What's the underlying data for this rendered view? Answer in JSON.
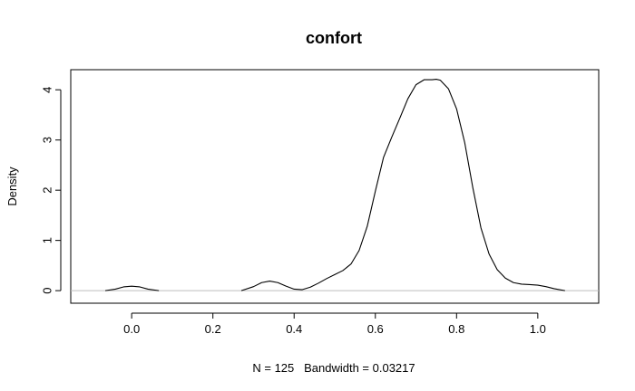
{
  "chart_data": {
    "type": "line",
    "title": "confort",
    "xlabel": "N = 125   Bandwidth = 0.03217",
    "ylabel": "Density",
    "xlim": [
      -0.15,
      1.15
    ],
    "ylim": [
      -0.25,
      4.4
    ],
    "x_ticks": [
      0.0,
      0.2,
      0.4,
      0.6,
      0.8,
      1.0
    ],
    "x_tick_labels": [
      "0.0",
      "0.2",
      "0.4",
      "0.6",
      "0.8",
      "1.0"
    ],
    "y_ticks": [
      0,
      1,
      2,
      3,
      4
    ],
    "y_tick_labels": [
      "0",
      "1",
      "2",
      "3",
      "4"
    ],
    "baseline": 0,
    "grid": false,
    "legend": "none",
    "colors": {
      "line": "#000000",
      "baseline": "#bebebe",
      "frame": "#000000"
    },
    "segments": [
      {
        "x": [
          -0.065,
          -0.04,
          -0.02,
          0.0,
          0.02,
          0.04,
          0.067
        ],
        "y": [
          0.0,
          0.03,
          0.075,
          0.09,
          0.075,
          0.03,
          0.0
        ]
      },
      {
        "x": [
          0.27,
          0.3,
          0.32,
          0.34,
          0.36,
          0.38,
          0.4,
          0.42,
          0.44,
          0.46,
          0.48,
          0.5,
          0.52,
          0.54,
          0.56,
          0.58,
          0.6,
          0.62,
          0.64,
          0.66,
          0.68,
          0.7,
          0.72,
          0.74,
          0.75,
          0.76,
          0.78,
          0.8,
          0.82,
          0.84,
          0.86,
          0.88,
          0.9,
          0.92,
          0.94,
          0.96,
          0.98,
          1.0,
          1.02,
          1.04,
          1.067
        ],
        "y": [
          0.0,
          0.08,
          0.16,
          0.19,
          0.16,
          0.09,
          0.03,
          0.02,
          0.07,
          0.15,
          0.24,
          0.32,
          0.4,
          0.53,
          0.8,
          1.28,
          1.98,
          2.65,
          3.05,
          3.43,
          3.82,
          4.1,
          4.2,
          4.2,
          4.21,
          4.19,
          4.02,
          3.62,
          2.95,
          2.05,
          1.25,
          0.73,
          0.42,
          0.25,
          0.16,
          0.13,
          0.12,
          0.11,
          0.08,
          0.04,
          0.0
        ]
      }
    ]
  }
}
